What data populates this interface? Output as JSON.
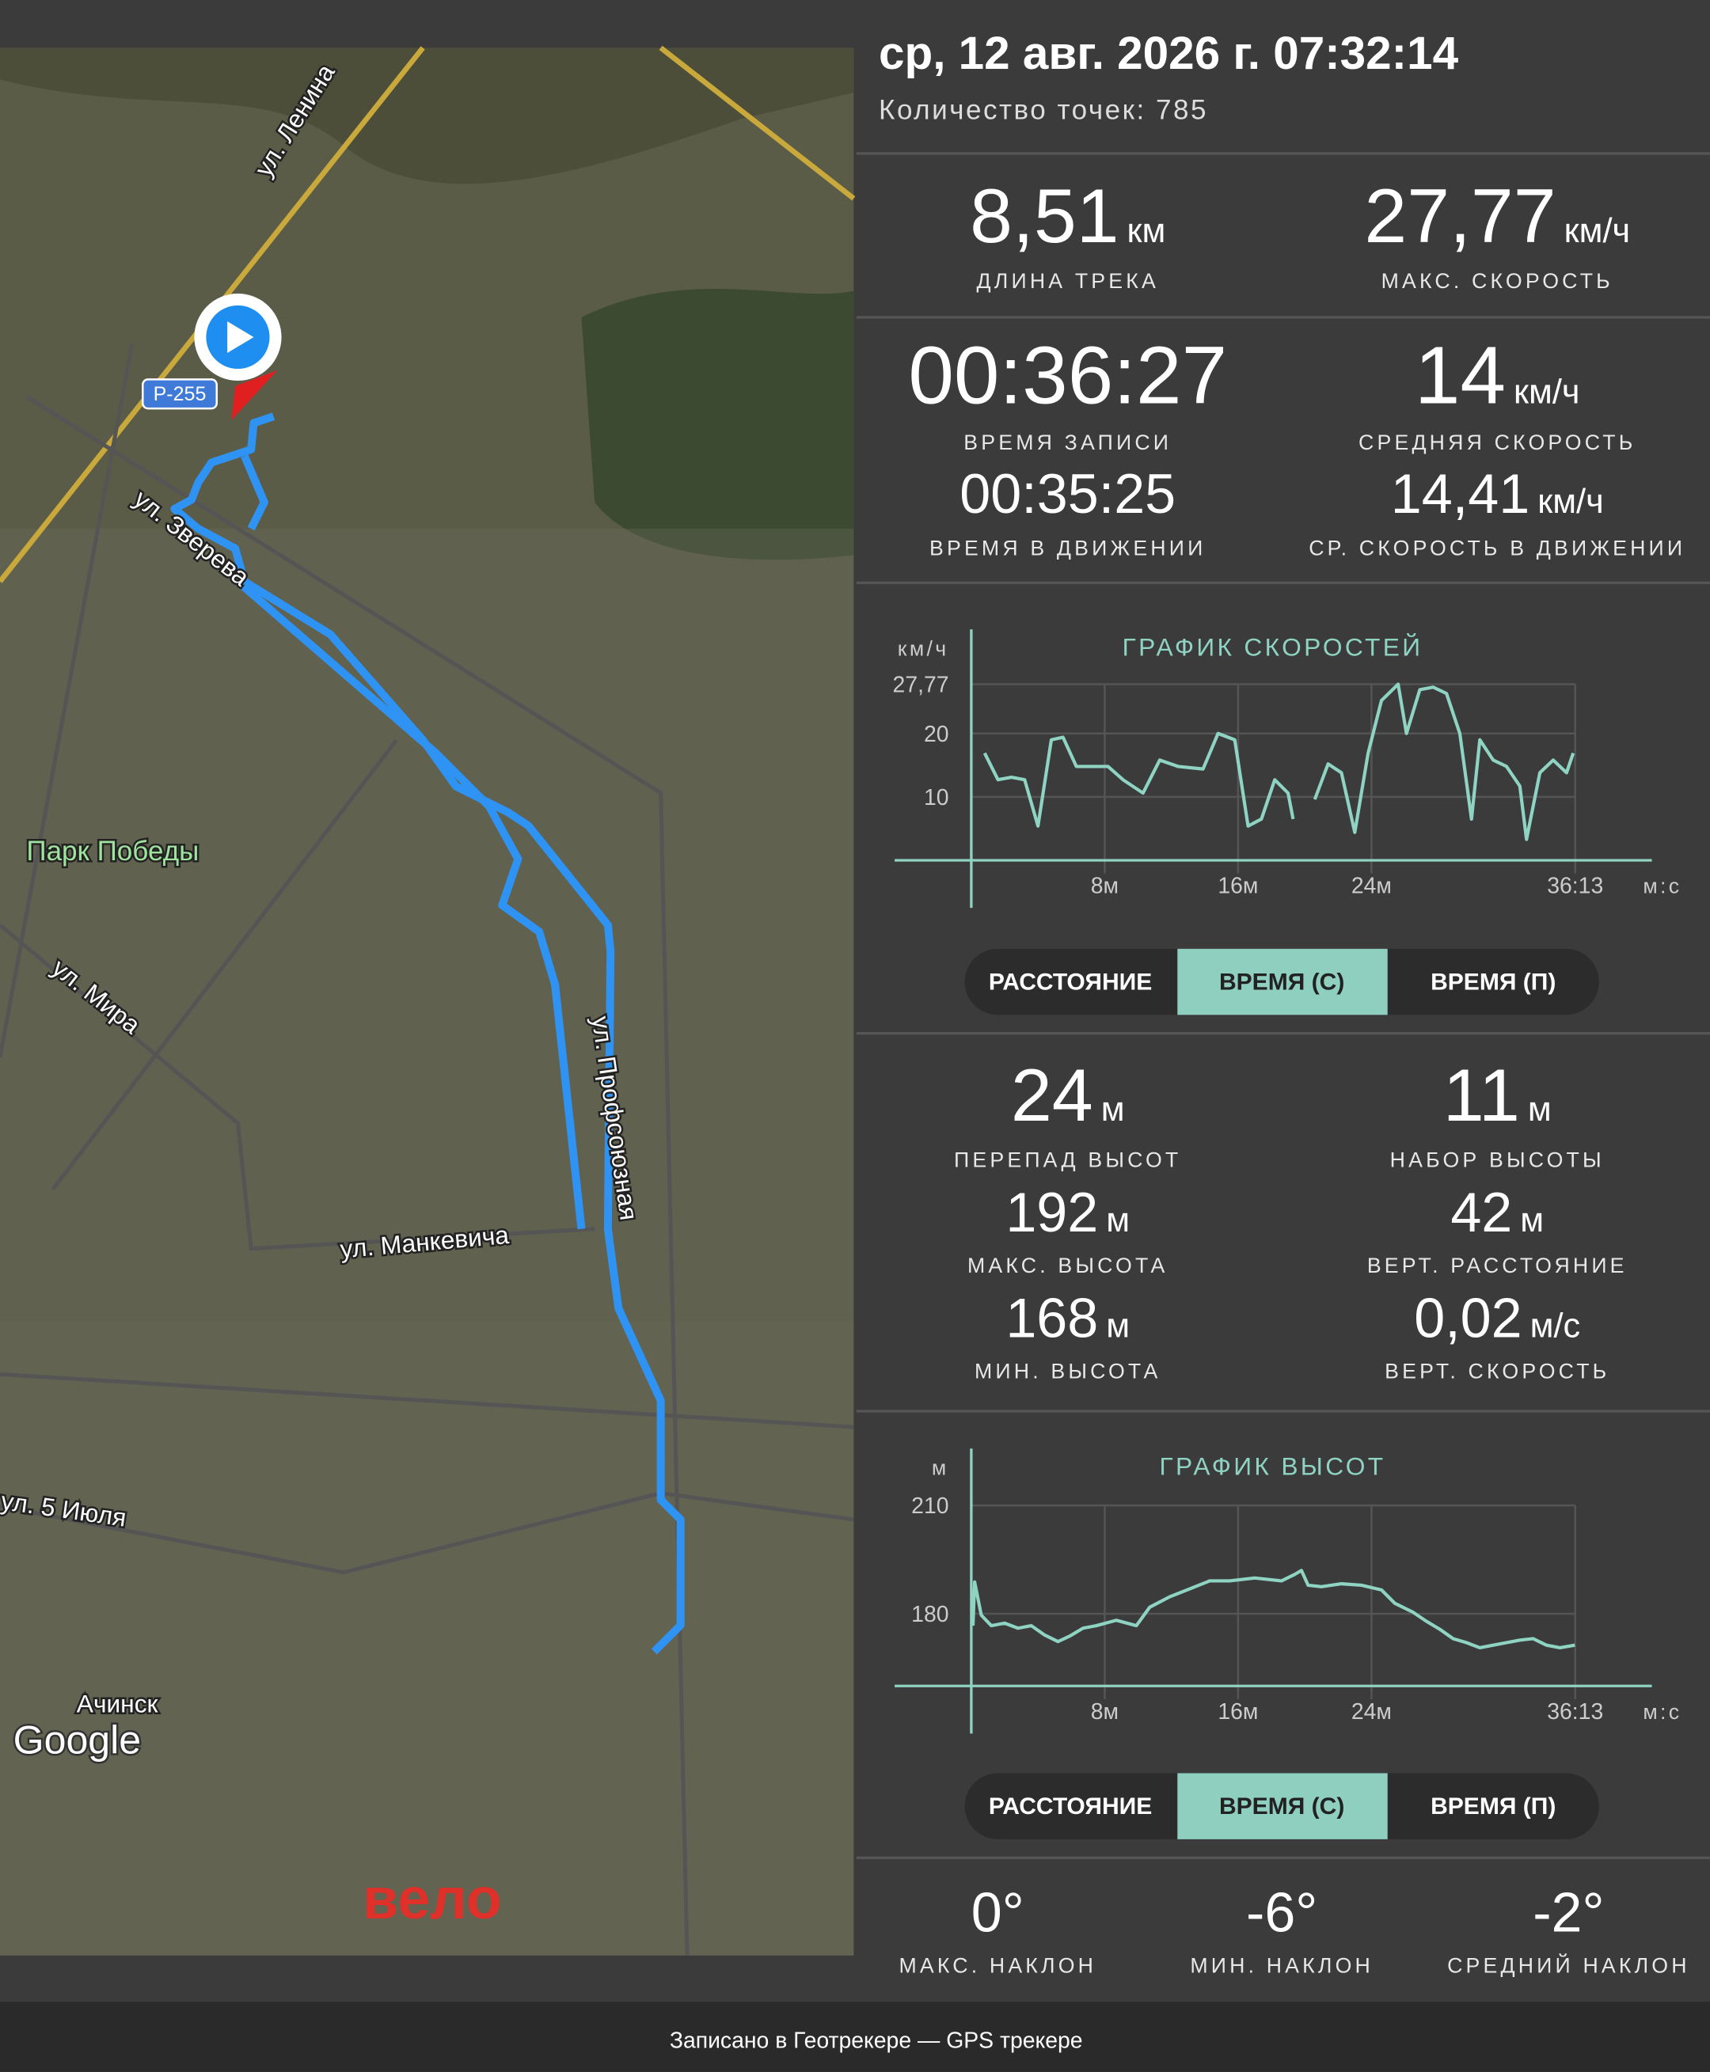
{
  "header": {
    "datetime": "ср, 12 авг. 2026 г. 07:32:14",
    "points": "Количество точек: 785"
  },
  "map": {
    "streets": [
      "ул. Ленина",
      "ул. Зверева",
      "ул. Мира",
      "ул. Профсоюзная",
      "ул. Манкевича",
      "ул. 5 Июля"
    ],
    "road": "Р-255",
    "park": "Парк Победы",
    "city": "Ачинск",
    "logo": "Google",
    "activity": "вело"
  },
  "stats": {
    "distance": {
      "value": "8,51",
      "unit": "км",
      "label": "ДЛИНА ТРЕКА"
    },
    "max_speed": {
      "value": "27,77",
      "unit": "км/ч",
      "label": "МАКС. СКОРОСТЬ"
    },
    "record_time": {
      "value": "00:36:27",
      "label": "ВРЕМЯ ЗАПИСИ"
    },
    "avg_speed": {
      "value": "14",
      "unit": "км/ч",
      "label": "СРЕДНЯЯ СКОРОСТЬ"
    },
    "moving_time": {
      "value": "00:35:25",
      "label": "ВРЕМЯ В ДВИЖЕНИИ"
    },
    "moving_speed": {
      "value": "14,41",
      "unit": "км/ч",
      "label": "СР. СКОРОСТЬ В ДВИЖЕНИИ"
    },
    "elev_diff": {
      "value": "24",
      "unit": "м",
      "label": "ПЕРЕПАД ВЫСОТ"
    },
    "ascent": {
      "value": "11",
      "unit": "м",
      "label": "НАБОР ВЫСОТЫ"
    },
    "max_elev": {
      "value": "192",
      "unit": "м",
      "label": "МАКС. ВЫСОТА"
    },
    "vert_dist": {
      "value": "42",
      "unit": "м",
      "label": "ВЕРТ. РАССТОЯНИЕ"
    },
    "min_elev": {
      "value": "168",
      "unit": "м",
      "label": "МИН. ВЫСОТА"
    },
    "vert_speed": {
      "value": "0,02",
      "unit": "м/с",
      "label": "ВЕРТ. СКОРОСТЬ"
    },
    "max_slope": {
      "value": "0°",
      "label": "МАКС. НАКЛОН"
    },
    "min_slope": {
      "value": "-6°",
      "label": "МИН. НАКЛОН"
    },
    "avg_slope": {
      "value": "-2°",
      "label": "СРЕДНИЙ НАКЛОН"
    }
  },
  "toggles": {
    "options": [
      "РАССТОЯНИЕ",
      "ВРЕМЯ (С)",
      "ВРЕМЯ (П)"
    ],
    "active": 1
  },
  "speed_chart": {
    "type": "line",
    "title": "ГРАФИК СКОРОСТЕЙ",
    "y_unit": "км/ч",
    "x_unit": "м:с",
    "color": "#8fd3c3",
    "grid": true,
    "xlim": [
      0,
      36.22
    ],
    "ylim": [
      0,
      36
    ],
    "xticks": [
      {
        "value": 8,
        "label": "8м"
      },
      {
        "value": 16,
        "label": "16м"
      },
      {
        "value": 24,
        "label": "24м"
      },
      {
        "value": 36.22,
        "label": "36:13"
      }
    ],
    "yticks": [
      10,
      20,
      {
        "value": 27.77,
        "label": "27,77"
      }
    ],
    "x": [
      0.8,
      1.6,
      2.4,
      3.2,
      4.0,
      4.8,
      5.5,
      6.3,
      7.1,
      8.2,
      9.1,
      10.3,
      11.3,
      12.4,
      13.9,
      14.8,
      15.8,
      16.6,
      17.4,
      18.2,
      19.0,
      19.3,
      19.8,
      20.6,
      21.4,
      22.2,
      23.0,
      23.8,
      24.6,
      25.6,
      26.1,
      26.9,
      27.7,
      28.5,
      29.3,
      30.0,
      30.5,
      31.3,
      32.1,
      32.9,
      33.3,
      34.1,
      34.9,
      35.7,
      36.1
    ],
    "values": [
      16.9,
      12.7,
      13.1,
      12.7,
      5.4,
      19.0,
      19.4,
      14.8,
      14.8,
      14.8,
      12.7,
      10.6,
      15.8,
      14.8,
      14.4,
      20.0,
      19.0,
      5.4,
      6.5,
      12.7,
      10.6,
      6.5,
      null,
      9.6,
      15.2,
      13.8,
      4.4,
      16.9,
      25.2,
      27.77,
      20.0,
      26.9,
      27.3,
      26.3,
      20.0,
      6.5,
      19.0,
      15.8,
      14.8,
      11.7,
      3.3,
      13.8,
      15.8,
      13.8,
      16.9
    ]
  },
  "elevation_chart": {
    "type": "line",
    "title": "ГРАФИК ВЫСОТ",
    "y_unit": "м",
    "x_unit": "м:с",
    "color": "#8fd3c3",
    "grid": true,
    "xlim": [
      0,
      36.22
    ],
    "ylim": [
      160,
      225
    ],
    "xticks": [
      {
        "value": 8,
        "label": "8м"
      },
      {
        "value": 16,
        "label": "16м"
      },
      {
        "value": 24,
        "label": "24м"
      },
      {
        "value": 36.22,
        "label": "36:13"
      }
    ],
    "yticks": [
      180,
      210
    ],
    "x": [
      0.1,
      0.2,
      0.6,
      1.2,
      2.0,
      2.8,
      3.6,
      4.4,
      5.2,
      5.9,
      6.7,
      7.5,
      8.7,
      9.9,
      10.7,
      11.9,
      13.1,
      14.3,
      15.5,
      17.0,
      18.6,
      19.4,
      19.8,
      20.2,
      21.0,
      22.2,
      23.4,
      24.6,
      25.4,
      26.5,
      27.3,
      28.1,
      28.9,
      29.7,
      30.5,
      31.3,
      32.1,
      32.9,
      33.7,
      34.5,
      35.3,
      36.2
    ],
    "values": [
      176.7,
      188.8,
      179.6,
      176.7,
      177.4,
      176,
      176.7,
      174.1,
      172.3,
      173.8,
      176,
      176.7,
      178.2,
      176.7,
      181.8,
      184.7,
      186.9,
      189.1,
      189.1,
      189.9,
      189.1,
      190.9,
      192,
      187.9,
      187.5,
      188.3,
      187.9,
      186.6,
      182.9,
      180.4,
      177.9,
      175.7,
      173.1,
      172,
      170.6,
      171.3,
      172,
      172.7,
      173.1,
      171.3,
      170.6,
      171.3
    ]
  },
  "footer": "Записано в Геотрекере — GPS трекере"
}
